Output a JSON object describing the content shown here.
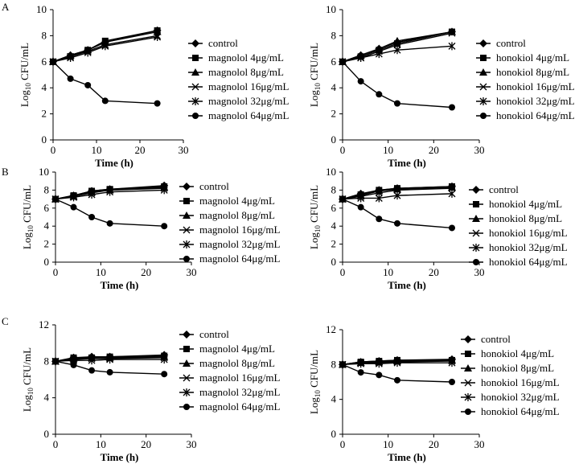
{
  "figure": {
    "panel_labels": [
      "A",
      "B",
      "C"
    ]
  },
  "chart_data": [
    {
      "type": "line",
      "panel": "A",
      "title": "",
      "xlabel": "Time (h)",
      "ylabel": "Log10 CFU/mL",
      "ylabel_prefix": "Log",
      "ylabel_sub": "10",
      "ylabel_suffix": " CFU/mL",
      "xlim": [
        0,
        30
      ],
      "ylim": [
        0,
        10
      ],
      "xticks": [
        0,
        10,
        20,
        30
      ],
      "yticks": [
        0,
        2,
        4,
        6,
        8,
        10
      ],
      "x": [
        0,
        4,
        8,
        12,
        24
      ],
      "legend_position": "right",
      "series": [
        {
          "name": "control",
          "marker": "diamond",
          "values": [
            6.0,
            6.5,
            6.9,
            7.5,
            8.4
          ]
        },
        {
          "name": "magnolol 4μg/mL",
          "marker": "square",
          "values": [
            6.0,
            6.4,
            6.9,
            7.6,
            8.4
          ]
        },
        {
          "name": "magnolol 8μg/mL",
          "marker": "triangle",
          "values": [
            6.0,
            6.5,
            6.9,
            7.5,
            8.3
          ]
        },
        {
          "name": "magnolol 16μg/mL",
          "marker": "x",
          "values": [
            6.0,
            6.4,
            6.8,
            7.3,
            8.0
          ]
        },
        {
          "name": "magnolol 32μg/mL",
          "marker": "star",
          "values": [
            6.0,
            6.3,
            6.7,
            7.2,
            7.9
          ]
        },
        {
          "name": "magnolol 64μg/mL",
          "marker": "circle",
          "values": [
            6.0,
            4.7,
            4.2,
            3.0,
            2.8
          ]
        }
      ]
    },
    {
      "type": "line",
      "panel": "A",
      "title": "",
      "xlabel": "Time (h)",
      "ylabel": "Log10 CFU/mL",
      "ylabel_prefix": "Log",
      "ylabel_sub": "10",
      "ylabel_suffix": " CFU/mL",
      "xlim": [
        0,
        30
      ],
      "ylim": [
        0,
        10
      ],
      "xticks": [
        0,
        10,
        20,
        30
      ],
      "yticks": [
        0,
        2,
        4,
        6,
        8,
        10
      ],
      "x": [
        0,
        4,
        8,
        12,
        24
      ],
      "legend_position": "right",
      "series": [
        {
          "name": "control",
          "marker": "diamond",
          "values": [
            6.0,
            6.5,
            7.0,
            7.5,
            8.3
          ]
        },
        {
          "name": "honokiol 4μg/mL",
          "marker": "square",
          "values": [
            6.0,
            6.4,
            6.9,
            7.4,
            8.3
          ]
        },
        {
          "name": "honokiol 8μg/mL",
          "marker": "triangle",
          "values": [
            6.0,
            6.5,
            7.0,
            7.6,
            8.3
          ]
        },
        {
          "name": "honokiol 16μg/mL",
          "marker": "x",
          "values": [
            6.0,
            6.3,
            6.8,
            7.3,
            8.2
          ]
        },
        {
          "name": "honokiol 32μg/mL",
          "marker": "star",
          "values": [
            6.0,
            6.3,
            6.6,
            6.9,
            7.2
          ]
        },
        {
          "name": "honokiol 64μg/mL",
          "marker": "circle",
          "values": [
            6.0,
            4.5,
            3.5,
            2.8,
            2.5
          ]
        }
      ]
    },
    {
      "type": "line",
      "panel": "B",
      "title": "",
      "xlabel": "Time (h)",
      "ylabel": "Log10 CFU/mL",
      "ylabel_prefix": "Log",
      "ylabel_sub": "10",
      "ylabel_suffix": " CFU/mL",
      "xlim": [
        0,
        30
      ],
      "ylim": [
        0,
        10
      ],
      "xticks": [
        0,
        10,
        20,
        30
      ],
      "yticks": [
        0,
        2,
        4,
        6,
        8,
        10
      ],
      "x": [
        0,
        4,
        8,
        12,
        24
      ],
      "legend_position": "right",
      "series": [
        {
          "name": "control",
          "marker": "diamond",
          "values": [
            7.0,
            7.4,
            7.9,
            8.1,
            8.5
          ]
        },
        {
          "name": "magnolol 4μg/mL",
          "marker": "square",
          "values": [
            7.0,
            7.4,
            7.9,
            8.1,
            8.4
          ]
        },
        {
          "name": "magnolol 8μg/mL",
          "marker": "triangle",
          "values": [
            7.0,
            7.3,
            7.8,
            8.0,
            8.3
          ]
        },
        {
          "name": "magnolol 16μg/mL",
          "marker": "x",
          "values": [
            7.0,
            7.3,
            7.7,
            8.0,
            8.2
          ]
        },
        {
          "name": "magnolol 32μg/mL",
          "marker": "star",
          "values": [
            7.0,
            7.2,
            7.5,
            7.8,
            8.0
          ]
        },
        {
          "name": "magnolol 64μg/mL",
          "marker": "circle",
          "values": [
            7.0,
            6.1,
            5.0,
            4.3,
            4.0
          ]
        }
      ]
    },
    {
      "type": "line",
      "panel": "B",
      "title": "",
      "xlabel": "Time (h)",
      "ylabel": "Log10 CFU/mL",
      "ylabel_prefix": "Log",
      "ylabel_sub": "10",
      "ylabel_suffix": " CFU/mL",
      "xlim": [
        0,
        30
      ],
      "ylim": [
        0,
        10
      ],
      "xticks": [
        0,
        10,
        20,
        30
      ],
      "yticks": [
        0,
        2,
        4,
        6,
        8,
        10
      ],
      "x": [
        0,
        4,
        8,
        12,
        24
      ],
      "legend_position": "right",
      "series": [
        {
          "name": "control",
          "marker": "diamond",
          "values": [
            7.0,
            7.6,
            8.0,
            8.2,
            8.4
          ]
        },
        {
          "name": "honokiol 4μg/mL",
          "marker": "square",
          "values": [
            7.0,
            7.5,
            8.0,
            8.2,
            8.4
          ]
        },
        {
          "name": "honokiol 8μg/mL",
          "marker": "triangle",
          "values": [
            7.0,
            7.4,
            7.9,
            8.1,
            8.3
          ]
        },
        {
          "name": "honokiol 16μg/mL",
          "marker": "x",
          "values": [
            7.0,
            7.3,
            7.7,
            8.0,
            8.2
          ]
        },
        {
          "name": "honokiol 32μg/mL",
          "marker": "star",
          "values": [
            7.0,
            7.1,
            7.1,
            7.4,
            7.6
          ]
        },
        {
          "name": "honokiol 64μg/mL",
          "marker": "circle",
          "values": [
            7.0,
            6.1,
            4.8,
            4.3,
            3.8
          ]
        }
      ]
    },
    {
      "type": "line",
      "panel": "C",
      "title": "",
      "xlabel": "Time (h)",
      "ylabel": "Log10 CFU/mL",
      "ylabel_prefix": "Log",
      "ylabel_sub": "10",
      "ylabel_suffix": " CFU/mL",
      "xlim": [
        0,
        30
      ],
      "ylim": [
        0,
        12
      ],
      "xticks": [
        0,
        10,
        20,
        30
      ],
      "yticks": [
        0,
        4,
        8,
        12
      ],
      "x": [
        0,
        4,
        8,
        12,
        24
      ],
      "legend_position": "right",
      "series": [
        {
          "name": "control",
          "marker": "diamond",
          "values": [
            8.0,
            8.4,
            8.5,
            8.5,
            8.7
          ]
        },
        {
          "name": "magnolol 4μg/mL",
          "marker": "square",
          "values": [
            8.0,
            8.4,
            8.4,
            8.5,
            8.6
          ]
        },
        {
          "name": "magnolol 8μg/mL",
          "marker": "triangle",
          "values": [
            8.0,
            8.3,
            8.4,
            8.4,
            8.5
          ]
        },
        {
          "name": "magnolol 16μg/mL",
          "marker": "x",
          "values": [
            8.0,
            8.2,
            8.3,
            8.3,
            8.4
          ]
        },
        {
          "name": "magnolol 32μg/mL",
          "marker": "star",
          "values": [
            8.0,
            8.1,
            8.1,
            8.2,
            8.2
          ]
        },
        {
          "name": "magnolol 64μg/mL",
          "marker": "circle",
          "values": [
            8.0,
            7.6,
            7.0,
            6.8,
            6.6
          ]
        }
      ]
    },
    {
      "type": "line",
      "panel": "C",
      "title": "",
      "xlabel": "Time (h)",
      "ylabel": "Log10 CFU/mL",
      "ylabel_prefix": "Log",
      "ylabel_sub": "10",
      "ylabel_suffix": " CFU/mL",
      "xlim": [
        0,
        30
      ],
      "ylim": [
        0,
        12
      ],
      "xticks": [
        0,
        10,
        20,
        30
      ],
      "yticks": [
        0,
        4,
        8,
        12
      ],
      "x": [
        0,
        4,
        8,
        12,
        24
      ],
      "legend_position": "right",
      "series": [
        {
          "name": "control",
          "marker": "diamond",
          "values": [
            8.0,
            8.3,
            8.4,
            8.5,
            8.6
          ]
        },
        {
          "name": "honokiol 4μg/mL",
          "marker": "square",
          "values": [
            8.0,
            8.3,
            8.4,
            8.5,
            8.5
          ]
        },
        {
          "name": "honokiol 8μg/mL",
          "marker": "triangle",
          "values": [
            8.0,
            8.2,
            8.3,
            8.4,
            8.5
          ]
        },
        {
          "name": "honokiol 16μg/mL",
          "marker": "x",
          "values": [
            8.0,
            8.2,
            8.2,
            8.3,
            8.4
          ]
        },
        {
          "name": "honokiol 32μg/mL",
          "marker": "star",
          "values": [
            8.0,
            8.1,
            8.1,
            8.2,
            8.2
          ]
        },
        {
          "name": "honokiol 64μg/mL",
          "marker": "circle",
          "values": [
            8.0,
            7.1,
            6.8,
            6.2,
            6.0
          ]
        }
      ]
    }
  ]
}
